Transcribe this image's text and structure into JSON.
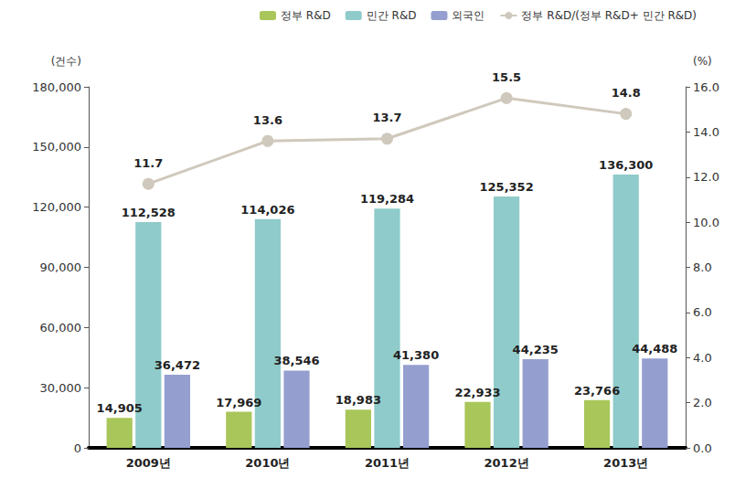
{
  "chart_data": {
    "type": "bar",
    "categories": [
      "2009년",
      "2010년",
      "2011년",
      "2012년",
      "2013년"
    ],
    "ylabel": "(건수)",
    "y2label": "(%)",
    "ylim": [
      0,
      180000
    ],
    "yticks": [
      0,
      {
        "value": 30000,
        "label": "30,000"
      },
      {
        "value": 60000,
        "label": "60,000"
      },
      {
        "value": 90000,
        "label": "90,000"
      },
      {
        "value": 120000,
        "label": "120,000"
      },
      {
        "value": 150000,
        "label": "150,000"
      },
      {
        "value": 180000,
        "label": "180,000"
      }
    ],
    "y2lim": [
      0,
      16
    ],
    "y2ticks": [
      {
        "value": 0,
        "label": "0.0"
      },
      {
        "value": 2,
        "label": "2.0"
      },
      {
        "value": 4,
        "label": "4.0"
      },
      {
        "value": 6,
        "label": "6.0"
      },
      {
        "value": 8,
        "label": "8.0"
      },
      {
        "value": 10,
        "label": "10.0"
      },
      {
        "value": 12,
        "label": "12.0"
      },
      {
        "value": 14,
        "label": "14.0"
      },
      {
        "value": 16,
        "label": "16.0"
      }
    ],
    "grid": false,
    "legend": "top",
    "data_labels": true,
    "series": [
      {
        "name": "정부 R&D",
        "type": "bar",
        "color": "#a9c65a",
        "values": [
          14905,
          17969,
          18983,
          22933,
          23766
        ],
        "value_labels": [
          "14,905",
          "17,969",
          "18,983",
          "22,933",
          "23,766"
        ]
      },
      {
        "name": "민간 R&D",
        "type": "bar",
        "color": "#8ecbca",
        "values": [
          112528,
          114026,
          119284,
          125352,
          136300
        ],
        "value_labels": [
          "112,528",
          "114,026",
          "119,284",
          "125,352",
          "136,300"
        ]
      },
      {
        "name": "외국인",
        "type": "bar",
        "color": "#949fcf",
        "values": [
          36472,
          38546,
          41380,
          44235,
          44488
        ],
        "value_labels": [
          "36,472",
          "38,546",
          "41,380",
          "44,235",
          "44,488"
        ]
      },
      {
        "name": "정부 R&D/(정부 R&D+ 민간 R&D)",
        "type": "line",
        "axis": "y2",
        "color": "#cfc8bc",
        "marker": "circle",
        "values": [
          11.7,
          13.6,
          13.7,
          15.5,
          14.8
        ]
      }
    ]
  }
}
